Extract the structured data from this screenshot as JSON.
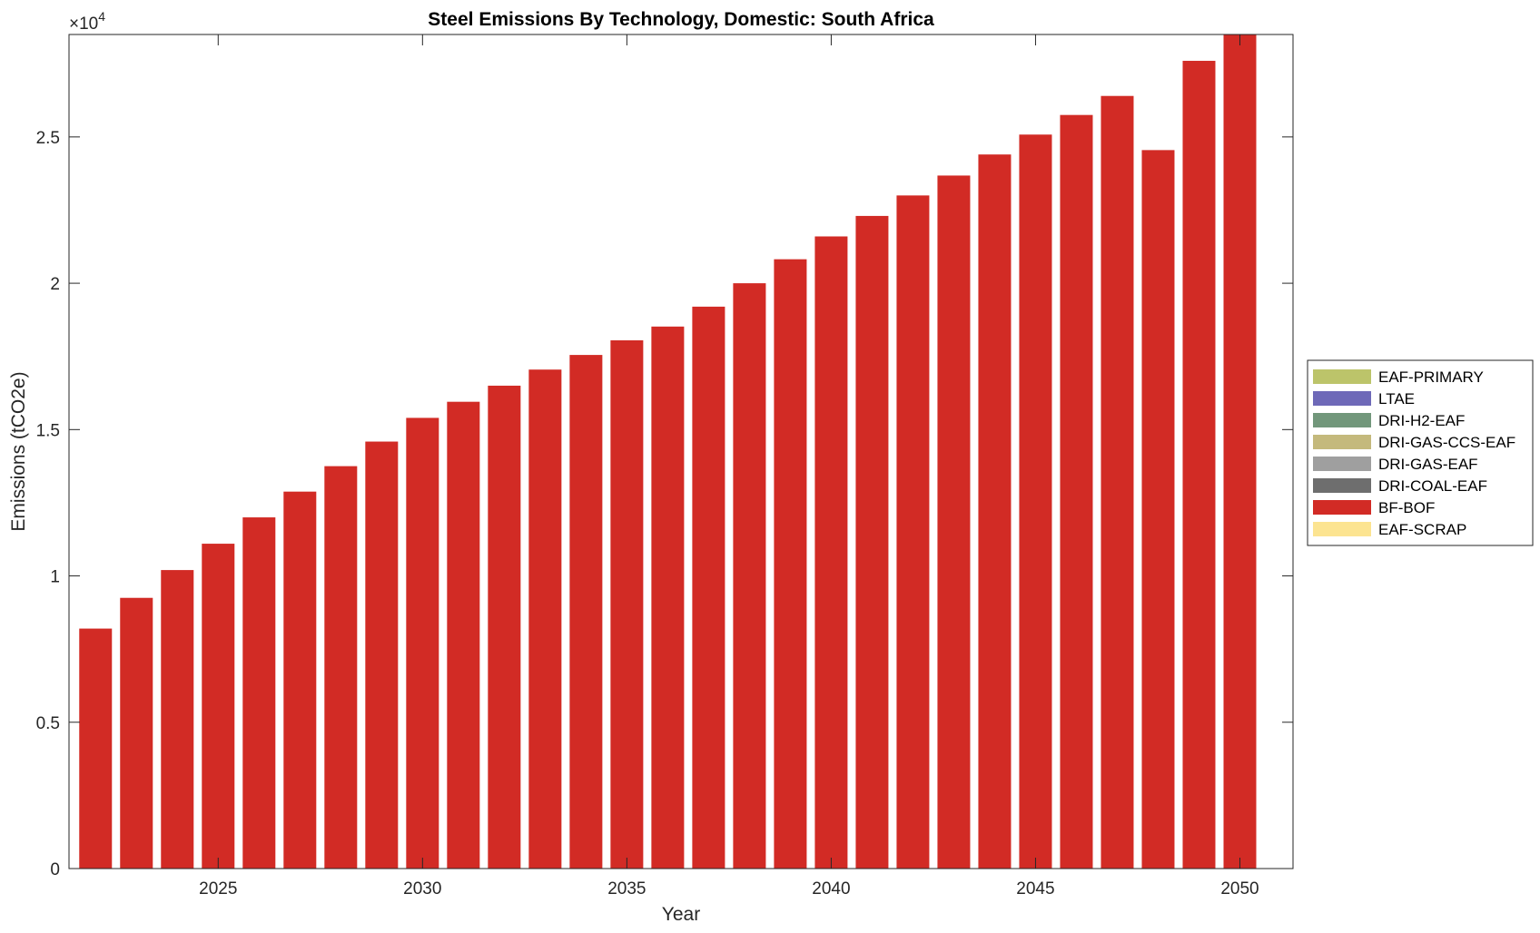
{
  "chart_data": {
    "type": "bar",
    "stacked": true,
    "title": "Steel Emissions By Technology, Domestic: South Africa",
    "xlabel": "Year",
    "ylabel": "Emissions (tCO2e)",
    "y_exponent_base": "×10",
    "y_exponent_power": "4",
    "xlim": [
      2021.35,
      2051.3
    ],
    "ylim": [
      0,
      28500
    ],
    "x_ticks": [
      2025,
      2030,
      2035,
      2040,
      2045,
      2050
    ],
    "x_tick_labels": [
      "2025",
      "2030",
      "2035",
      "2040",
      "2045",
      "2050"
    ],
    "y_ticks": [
      0,
      5000,
      10000,
      15000,
      20000,
      25000
    ],
    "y_tick_labels": [
      "0",
      "0.5",
      "1",
      "1.5",
      "2",
      "2.5"
    ],
    "grid": false,
    "legend_position": "right",
    "categories": [
      2022,
      2023,
      2024,
      2025,
      2026,
      2027,
      2028,
      2029,
      2030,
      2031,
      2032,
      2033,
      2034,
      2035,
      2036,
      2037,
      2038,
      2039,
      2040,
      2041,
      2042,
      2043,
      2044,
      2045,
      2046,
      2047,
      2048,
      2049,
      2050
    ],
    "series": [
      {
        "name": "EAF-PRIMARY",
        "color": "#bcc46a",
        "values": [
          0,
          0,
          0,
          0,
          0,
          0,
          0,
          0,
          0,
          0,
          0,
          0,
          0,
          0,
          0,
          0,
          0,
          0,
          0,
          0,
          0,
          0,
          0,
          0,
          0,
          0,
          0,
          0,
          0
        ]
      },
      {
        "name": "LTAE",
        "color": "#6e69b8",
        "values": [
          0,
          0,
          0,
          0,
          0,
          0,
          0,
          0,
          0,
          0,
          0,
          0,
          0,
          0,
          0,
          0,
          0,
          0,
          0,
          0,
          0,
          0,
          0,
          0,
          0,
          0,
          0,
          0,
          0
        ]
      },
      {
        "name": "DRI-H2-EAF",
        "color": "#72977b",
        "values": [
          0,
          0,
          0,
          0,
          0,
          0,
          0,
          0,
          0,
          0,
          0,
          0,
          0,
          0,
          0,
          0,
          0,
          0,
          0,
          0,
          0,
          0,
          0,
          0,
          0,
          0,
          0,
          0,
          0
        ]
      },
      {
        "name": "DRI-GAS-CCS-EAF",
        "color": "#c4b97c",
        "values": [
          0,
          0,
          0,
          0,
          0,
          0,
          0,
          0,
          0,
          0,
          0,
          0,
          0,
          0,
          0,
          0,
          0,
          0,
          0,
          0,
          0,
          0,
          0,
          0,
          0,
          0,
          0,
          0,
          0
        ]
      },
      {
        "name": "DRI-GAS-EAF",
        "color": "#9f9f9f",
        "values": [
          0,
          0,
          0,
          0,
          0,
          0,
          0,
          0,
          0,
          0,
          0,
          0,
          0,
          0,
          0,
          0,
          0,
          0,
          0,
          0,
          0,
          0,
          0,
          0,
          0,
          0,
          0,
          0,
          0
        ]
      },
      {
        "name": "DRI-COAL-EAF",
        "color": "#6e6e6e",
        "values": [
          0,
          0,
          0,
          0,
          0,
          0,
          0,
          0,
          0,
          0,
          0,
          0,
          0,
          0,
          0,
          0,
          0,
          0,
          0,
          0,
          0,
          0,
          0,
          0,
          0,
          0,
          0,
          0,
          0
        ]
      },
      {
        "name": "BF-BOF",
        "color": "#d22b25",
        "values": [
          8200,
          9250,
          10200,
          11100,
          12000,
          12880,
          13750,
          14590,
          15400,
          15950,
          16500,
          17050,
          17550,
          18050,
          18520,
          19200,
          20000,
          20820,
          21600,
          22300,
          23000,
          23680,
          24400,
          25080,
          25750,
          26400,
          24550,
          27600,
          28550
        ]
      },
      {
        "name": "EAF-SCRAP",
        "color": "#fce491",
        "values": [
          0,
          0,
          0,
          0,
          0,
          0,
          0,
          0,
          0,
          0,
          0,
          0,
          0,
          0,
          0,
          0,
          0,
          0,
          0,
          0,
          0,
          0,
          0,
          0,
          0,
          0,
          0,
          0,
          0
        ]
      }
    ]
  }
}
